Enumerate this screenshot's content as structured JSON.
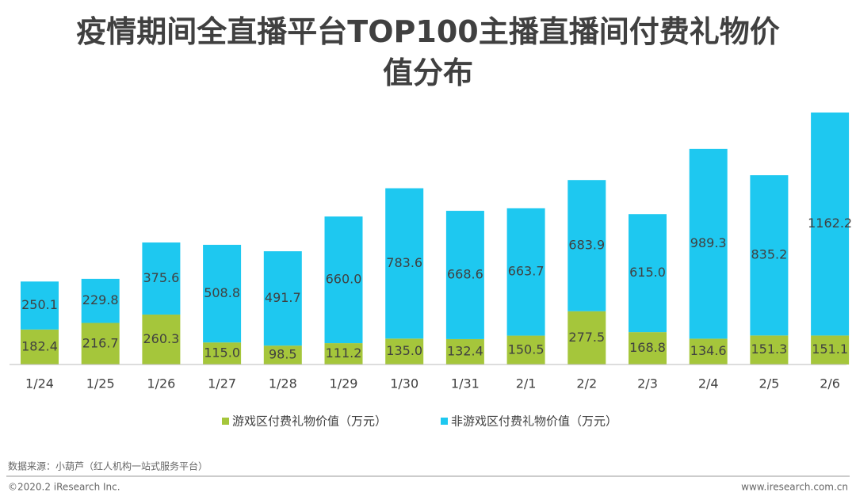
{
  "chart_data": {
    "type": "stacked-bar",
    "title": "疫情期间全直播平台TOP100主播直播间付费礼物价值分布",
    "categories": [
      "1/24",
      "1/25",
      "1/26",
      "1/27",
      "1/28",
      "1/29",
      "1/30",
      "1/31",
      "2/1",
      "2/2",
      "2/3",
      "2/4",
      "2/5",
      "2/6"
    ],
    "series": [
      {
        "name": "游戏区付费礼物价值（万元）",
        "color": "#a5c63b",
        "values": [
          182.4,
          216.7,
          260.3,
          115.0,
          98.5,
          111.2,
          135.0,
          132.4,
          150.5,
          277.5,
          168.8,
          134.6,
          151.3,
          151.1
        ],
        "value_labels": [
          "182.4",
          "216.7",
          "260.3",
          "115.0",
          "98.5",
          "111.2",
          "135.0",
          "132.4",
          "150.5",
          "277.5",
          "168.8",
          "134.6",
          "151.3",
          "151.1"
        ]
      },
      {
        "name": "非游戏区付费礼物价值（万元）",
        "color": "#1ec8f0",
        "values": [
          250.1,
          229.8,
          375.6,
          508.8,
          491.7,
          660.0,
          783.6,
          668.6,
          663.7,
          683.9,
          615.0,
          989.3,
          835.2,
          1162.2
        ],
        "value_labels": [
          "250.1",
          "229.8",
          "375.6",
          "508.8",
          "491.7",
          "660.0",
          "783.6",
          "668.6",
          "663.7",
          "683.9",
          "615.0",
          "989.3",
          "835.2",
          "1162.2"
        ]
      }
    ]
  },
  "footer": {
    "source": "数据来源：小葫芦（红人机构一站式服务平台）",
    "copyright": "©2020.2 iResearch Inc.",
    "website": "www.iresearch.com.cn"
  }
}
